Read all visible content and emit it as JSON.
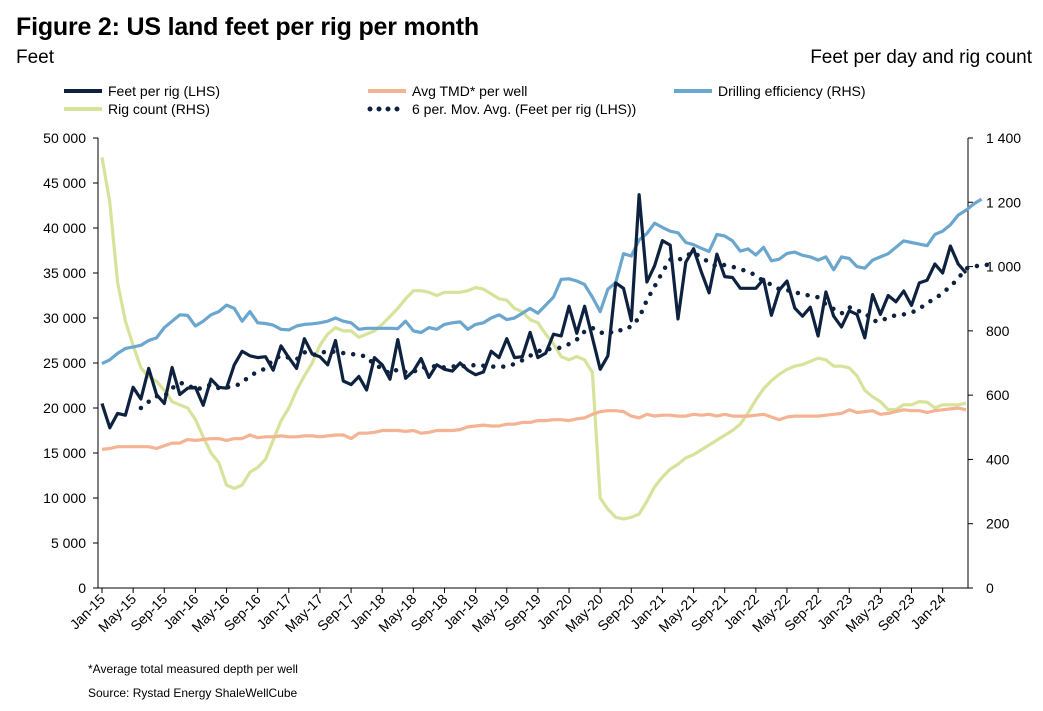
{
  "figure": {
    "title": "Figure 2: US land feet per rig per month",
    "left_unit": "Feet",
    "right_unit": "Feet per day and rig count",
    "footnote": "*Average total measured depth per well",
    "source": "Source: Rystad Energy ShaleWellCube"
  },
  "colors": {
    "feet_per_rig": "#0e2240",
    "avg_tmd": "#f4b393",
    "drilling_efficiency": "#6aa6cd",
    "rig_count": "#d6e39a",
    "moving_avg": "#0e2240",
    "axis": "#000000"
  },
  "chart_data": {
    "type": "line",
    "x_tick_labels": [
      "Jan-15",
      "May-15",
      "Sep-15",
      "Jan-16",
      "May-16",
      "Sep-16",
      "Jan-17",
      "May-17",
      "Sep-17",
      "Jan-18",
      "May-18",
      "Sep-18",
      "Jan-19",
      "May-19",
      "Sep-19",
      "Jan-20",
      "May-20",
      "Sep-20",
      "Jan-21",
      "May-21",
      "Sep-21",
      "Jan-22",
      "May-22",
      "Sep-22",
      "Jan-23",
      "May-23",
      "Sep-23",
      "Jan-24"
    ],
    "x_range": [
      "Jan-15",
      "Apr-24"
    ],
    "y_left": {
      "label": "Feet",
      "min": 0,
      "max": 50000,
      "ticks": [
        "0",
        "5 000",
        "10 000",
        "15 000",
        "20 000",
        "25 000",
        "30 000",
        "35 000",
        "40 000",
        "45 000",
        "50 000"
      ]
    },
    "y_right": {
      "label": "Feet per day and rig count",
      "min": 0,
      "max": 1400,
      "ticks": [
        "0",
        "200",
        "400",
        "600",
        "800",
        "1 000",
        "1 200",
        "1 400"
      ]
    },
    "legend_placement": "top",
    "gridlines": false,
    "series": [
      {
        "name": "Feet per rig (LHS)",
        "axis": "left",
        "style": "solid",
        "values": [
          20500,
          17800,
          19400,
          19200,
          22300,
          21000,
          24400,
          21500,
          20500,
          24500,
          21500,
          22200,
          22300,
          20300,
          23200,
          22300,
          22200,
          24800,
          26300,
          25800,
          25600,
          25700,
          24200,
          26900,
          25600,
          24400,
          27700,
          26000,
          25700,
          24800,
          27500,
          23000,
          22600,
          23500,
          22000,
          25600,
          24800,
          23200,
          27600,
          23300,
          24100,
          25500,
          23400,
          24800,
          24300,
          24100,
          25000,
          24200,
          23700,
          24000,
          26300,
          25600,
          27700,
          25600,
          25700,
          28400,
          25600,
          26100,
          28200,
          28000,
          31300,
          28300,
          31300,
          27800,
          24300,
          25800,
          33900,
          33300,
          29700,
          43700,
          34000,
          35800,
          38600,
          38100,
          29900,
          36200,
          37700,
          35100,
          32800,
          37100,
          34600,
          34500,
          33300,
          33300,
          33300,
          34300,
          30300,
          33100,
          34100,
          31100,
          30200,
          31200,
          28000,
          32900,
          30200,
          29000,
          30800,
          30400,
          27800,
          32600,
          30400,
          32500,
          31800,
          33000,
          31400,
          33900,
          34200,
          36000,
          35000,
          38000,
          36000,
          35000
        ]
      },
      {
        "name": "Avg TMD* per well",
        "axis": "left",
        "style": "solid",
        "values": [
          15400,
          15500,
          15700,
          15700,
          15700,
          15700,
          15700,
          15500,
          15800,
          16100,
          16100,
          16500,
          16400,
          16500,
          16600,
          16600,
          16400,
          16600,
          16600,
          17000,
          16700,
          16800,
          16800,
          16900,
          16800,
          16800,
          16900,
          16900,
          16800,
          16900,
          17000,
          17000,
          16600,
          17200,
          17200,
          17300,
          17500,
          17500,
          17500,
          17400,
          17500,
          17200,
          17300,
          17500,
          17500,
          17500,
          17600,
          17900,
          18000,
          18100,
          18000,
          18000,
          18200,
          18200,
          18400,
          18400,
          18600,
          18600,
          18700,
          18700,
          18600,
          18800,
          18900,
          19300,
          19600,
          19700,
          19700,
          19600,
          19100,
          18900,
          19300,
          19100,
          19200,
          19200,
          19100,
          19100,
          19300,
          19200,
          19300,
          19100,
          19300,
          19100,
          19100,
          19100,
          19200,
          19300,
          19000,
          18700,
          19000,
          19100,
          19100,
          19100,
          19100,
          19200,
          19300,
          19400,
          19800,
          19500,
          19600,
          19700,
          19300,
          19400,
          19600,
          19800,
          19700,
          19700,
          19500,
          19700,
          19800,
          19900,
          20000,
          19800
        ]
      },
      {
        "name": "Drilling efficiency (RHS)",
        "axis": "right",
        "style": "solid",
        "values": [
          698,
          710,
          730,
          745,
          750,
          755,
          770,
          778,
          810,
          830,
          850,
          848,
          815,
          830,
          850,
          860,
          880,
          870,
          830,
          860,
          825,
          823,
          818,
          805,
          803,
          815,
          820,
          822,
          825,
          830,
          840,
          830,
          825,
          805,
          808,
          808,
          808,
          808,
          807,
          830,
          800,
          795,
          810,
          805,
          820,
          825,
          828,
          805,
          820,
          825,
          840,
          850,
          835,
          840,
          855,
          870,
          855,
          880,
          905,
          960,
          962,
          955,
          944,
          905,
          860,
          930,
          950,
          1040,
          1033,
          1083,
          1103,
          1135,
          1122,
          1110,
          1105,
          1075,
          1068,
          1057,
          1047,
          1100,
          1095,
          1080,
          1048,
          1055,
          1036,
          1060,
          1018,
          1023,
          1041,
          1045,
          1035,
          1030,
          1020,
          1030,
          990,
          1030,
          1025,
          1000,
          995,
          1020,
          1030,
          1040,
          1060,
          1080,
          1075,
          1070,
          1065,
          1100,
          1110,
          1130,
          1160,
          1175,
          1195,
          1210
        ]
      },
      {
        "name": "Rig count (RHS)",
        "axis": "right",
        "style": "solid",
        "values": [
          1340,
          1200,
          950,
          830,
          755,
          685,
          657,
          643,
          615,
          580,
          570,
          560,
          525,
          470,
          420,
          390,
          320,
          310,
          320,
          360,
          375,
          400,
          460,
          520,
          560,
          615,
          660,
          700,
          755,
          790,
          810,
          800,
          800,
          780,
          790,
          800,
          820,
          845,
          870,
          900,
          925,
          925,
          920,
          910,
          920,
          920,
          920,
          925,
          935,
          930,
          915,
          900,
          895,
          870,
          860,
          835,
          825,
          790,
          760,
          720,
          710,
          720,
          710,
          670,
          280,
          245,
          220,
          215,
          220,
          230,
          270,
          315,
          345,
          370,
          385,
          405,
          415,
          430,
          445,
          460,
          475,
          490,
          510,
          545,
          585,
          620,
          645,
          665,
          680,
          690,
          695,
          705,
          715,
          710,
          690,
          690,
          685,
          660,
          615,
          595,
          580,
          555,
          555,
          570,
          570,
          580,
          578,
          560,
          570,
          570,
          570,
          575
        ]
      },
      {
        "name": "6 per. Mov. Avg. (Feet per rig (LHS))",
        "axis": "left",
        "style": "dotted",
        "start_index": 5,
        "values": [
          20000,
          20700,
          21300,
          21300,
          22200,
          22800,
          22600,
          22000,
          22300,
          22600,
          22200,
          22300,
          22400,
          22800,
          23600,
          24000,
          24400,
          25400,
          25800,
          25600,
          25400,
          26200,
          25900,
          26000,
          26400,
          26200,
          26100,
          26000,
          25900,
          25700,
          24800,
          24400,
          23800,
          24300,
          24000,
          24000,
          24500,
          24500,
          24700,
          24500,
          24600,
          24700,
          24600,
          24800,
          24700,
          24600,
          24600,
          24600,
          24900,
          25300,
          25800,
          26300,
          26500,
          26600,
          26700,
          27100,
          27600,
          28500,
          28900,
          28400,
          28200,
          28700,
          28600,
          29100,
          30000,
          32000,
          33500,
          35100,
          36500,
          36400,
          36900,
          37300,
          36700,
          36200,
          35700,
          35900,
          35700,
          35400,
          35200,
          34700,
          34100,
          33700,
          33200,
          33100,
          32900,
          32600,
          32500,
          32300,
          31500,
          31000,
          30500,
          31200,
          30800,
          30600,
          29700,
          29600,
          30100,
          30300,
          30400,
          30600,
          31000,
          31700,
          32100,
          32800,
          33500,
          34400,
          35500,
          35700,
          35900,
          35900
        ]
      }
    ]
  }
}
